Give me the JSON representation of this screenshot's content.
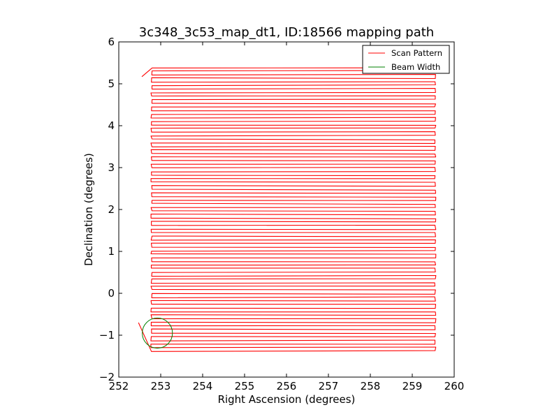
{
  "chart_data": {
    "type": "line",
    "title": "3c348_3c53_map_dt1, ID:18566 mapping path",
    "xlabel": "Right Ascension (degrees)",
    "ylabel": "Declination (degrees)",
    "xlim": [
      252,
      260
    ],
    "ylim": [
      -2,
      6
    ],
    "x_ticks": [
      252,
      253,
      254,
      255,
      256,
      257,
      258,
      259,
      260
    ],
    "y_ticks": [
      -2,
      -1,
      0,
      1,
      2,
      3,
      4,
      5,
      6
    ],
    "grid": false,
    "legend": {
      "location": "upper right",
      "entries": [
        {
          "label": "Scan Pattern",
          "color": "#ff0000"
        },
        {
          "label": "Beam Width",
          "color": "#008000"
        }
      ]
    },
    "series": [
      {
        "name": "Scan Pattern",
        "color": "#ff0000",
        "style": "raster",
        "ra_min": 252.78,
        "ra_max": 259.55,
        "dec_start": -1.38,
        "dec_end": 5.36,
        "leg_spacing": 0.0857,
        "tail_start": [
          252.47,
          -0.7
        ],
        "top_hook": [
          252.55,
          5.17
        ]
      },
      {
        "name": "Beam Width",
        "color": "#008000",
        "shape": "circle",
        "center": [
          252.92,
          -0.95
        ],
        "radius": 0.36
      }
    ]
  }
}
